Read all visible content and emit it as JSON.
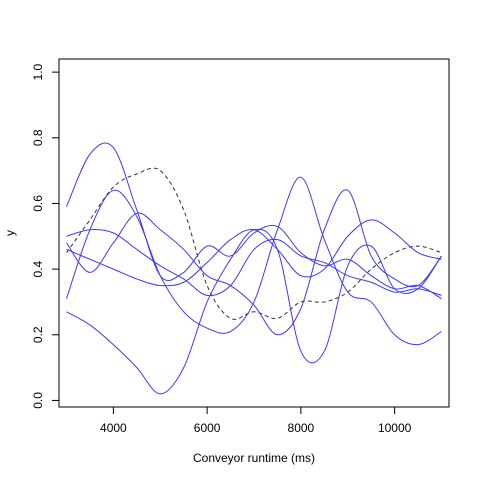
{
  "chart_data": {
    "type": "line",
    "title": "",
    "xlabel": "Conveyor runtime (ms)",
    "ylabel": "y",
    "xlim": [
      2840,
      11160
    ],
    "ylim": [
      -0.02,
      1.04
    ],
    "x_ticks": [
      4000,
      6000,
      8000,
      10000
    ],
    "y_ticks": [
      0.0,
      0.2,
      0.4,
      0.6,
      0.8,
      1.0
    ],
    "x_tick_labels": [
      "4000",
      "6000",
      "8000",
      "10000"
    ],
    "y_tick_labels": [
      "0.0",
      "0.2",
      "0.4",
      "0.6",
      "0.8",
      "1.0"
    ],
    "grid": false,
    "legend": "none",
    "colors": {
      "series": "#3b3bf5",
      "mean": "#333333"
    },
    "series": [
      {
        "style": "dashed",
        "color": "#333333",
        "x": [
          3000,
          3500,
          4000,
          4500,
          5000,
          5500,
          6000,
          6500,
          7000,
          7500,
          8000,
          8500,
          9000,
          9500,
          10000,
          10500,
          11000
        ],
        "y": [
          0.45,
          0.55,
          0.65,
          0.69,
          0.7,
          0.58,
          0.35,
          0.25,
          0.27,
          0.25,
          0.3,
          0.3,
          0.33,
          0.4,
          0.45,
          0.47,
          0.45
        ]
      },
      {
        "style": "solid",
        "color": "#3b3bf5",
        "x": [
          3000,
          3500,
          4000,
          4500,
          5000,
          5500,
          6000,
          6500,
          7000,
          7500,
          8000,
          8500,
          9000,
          9500,
          10000,
          10500,
          11000
        ],
        "y": [
          0.59,
          0.75,
          0.77,
          0.58,
          0.38,
          0.39,
          0.47,
          0.44,
          0.51,
          0.53,
          0.45,
          0.41,
          0.43,
          0.38,
          0.34,
          0.35,
          0.31
        ]
      },
      {
        "style": "solid",
        "color": "#3b3bf5",
        "x": [
          3000,
          3500,
          4000,
          4500,
          5000,
          5500,
          6000,
          6500,
          7000,
          7500,
          8000,
          8500,
          9000,
          9500,
          10000,
          10500,
          11000
        ],
        "y": [
          0.31,
          0.52,
          0.64,
          0.56,
          0.38,
          0.27,
          0.22,
          0.21,
          0.3,
          0.52,
          0.68,
          0.49,
          0.33,
          0.3,
          0.2,
          0.17,
          0.21
        ]
      },
      {
        "style": "solid",
        "color": "#3b3bf5",
        "x": [
          3000,
          3500,
          4000,
          4500,
          5000,
          5500,
          6000,
          6500,
          7000,
          7500,
          8000,
          8500,
          9000,
          9500,
          10000,
          10500,
          11000
        ],
        "y": [
          0.48,
          0.39,
          0.48,
          0.57,
          0.52,
          0.46,
          0.38,
          0.35,
          0.29,
          0.2,
          0.28,
          0.52,
          0.64,
          0.44,
          0.37,
          0.35,
          0.44
        ]
      },
      {
        "style": "solid",
        "color": "#3b3bf5",
        "x": [
          3000,
          3500,
          4000,
          4500,
          5000,
          5500,
          6000,
          6500,
          7000,
          7500,
          8000,
          8500,
          9000,
          9500,
          10000,
          10500,
          11000
        ],
        "y": [
          0.46,
          0.43,
          0.4,
          0.37,
          0.35,
          0.36,
          0.42,
          0.49,
          0.52,
          0.46,
          0.38,
          0.4,
          0.5,
          0.55,
          0.51,
          0.45,
          0.43
        ]
      },
      {
        "style": "solid",
        "color": "#3b3bf5",
        "x": [
          3000,
          3500,
          4000,
          4500,
          5000,
          5500,
          6000,
          6500,
          7000,
          7500,
          8000,
          8500,
          9000,
          9500,
          10000,
          10500,
          11000
        ],
        "y": [
          0.27,
          0.23,
          0.17,
          0.1,
          0.02,
          0.1,
          0.3,
          0.43,
          0.52,
          0.46,
          0.15,
          0.15,
          0.41,
          0.47,
          0.34,
          0.34,
          0.44
        ]
      },
      {
        "style": "solid",
        "color": "#3b3bf5",
        "x": [
          3000,
          3500,
          4000,
          4500,
          5000,
          5500,
          6000,
          6500,
          7000,
          7500,
          8000,
          8500,
          9000,
          9500,
          10000,
          10500,
          11000
        ],
        "y": [
          0.5,
          0.52,
          0.51,
          0.46,
          0.41,
          0.37,
          0.32,
          0.35,
          0.46,
          0.49,
          0.44,
          0.42,
          0.38,
          0.36,
          0.33,
          0.34,
          0.32
        ]
      }
    ]
  }
}
